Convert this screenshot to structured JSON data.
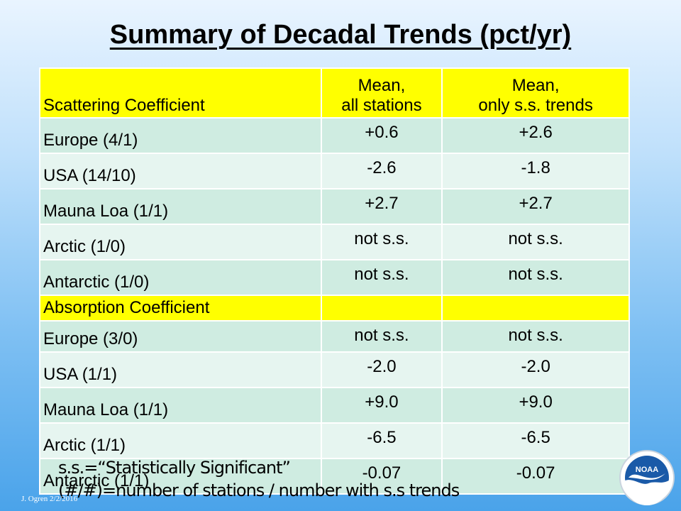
{
  "title": "Summary of Decadal Trends (pct/yr)",
  "table": {
    "header": {
      "col1": "Scattering Coefficient",
      "col2_line1": "Mean,",
      "col2_line2": "all stations",
      "col3_line1": "Mean,",
      "col3_line2": "only s.s. trends"
    },
    "scattering_rows": [
      {
        "name": "Europe (4/1)",
        "mean_all": "+0.6",
        "mean_ss": "+2.6"
      },
      {
        "name": "USA (14/10)",
        "mean_all": "-2.6",
        "mean_ss": "-1.8"
      },
      {
        "name": "Mauna Loa (1/1)",
        "mean_all": "+2.7",
        "mean_ss": "+2.7"
      },
      {
        "name": "Arctic (1/0)",
        "mean_all": "not s.s.",
        "mean_ss": "not s.s."
      },
      {
        "name": "Antarctic (1/0)",
        "mean_all": "not s.s.",
        "mean_ss": "not s.s."
      }
    ],
    "absorption_section": "Absorption Coefficient",
    "absorption_rows": [
      {
        "name": "Europe (3/0)",
        "mean_all": "not s.s.",
        "mean_ss": "not s.s."
      },
      {
        "name": "USA (1/1)",
        "mean_all": "-2.0",
        "mean_ss": "-2.0"
      },
      {
        "name": "Mauna Loa (1/1)",
        "mean_all": "+9.0",
        "mean_ss": "+9.0"
      },
      {
        "name": "Arctic (1/1)",
        "mean_all": "-6.5",
        "mean_ss": "-6.5"
      },
      {
        "name": "Antarctic (1/1)",
        "mean_all": "-0.07",
        "mean_ss": "-0.07"
      }
    ]
  },
  "footnotes": {
    "line1": "s.s.=“Statistically Significant”",
    "line2": "(#/#)=number of stations / number with s.s trends"
  },
  "author": "J. Ogren  2/2/2016",
  "logo": {
    "icon": "noaa-logo",
    "text": "NOAA",
    "color_primary": "#1a5aa8"
  },
  "colors": {
    "header": "#ffff00",
    "row_odd": "#cfece1",
    "row_even": "#e6f5f0"
  }
}
